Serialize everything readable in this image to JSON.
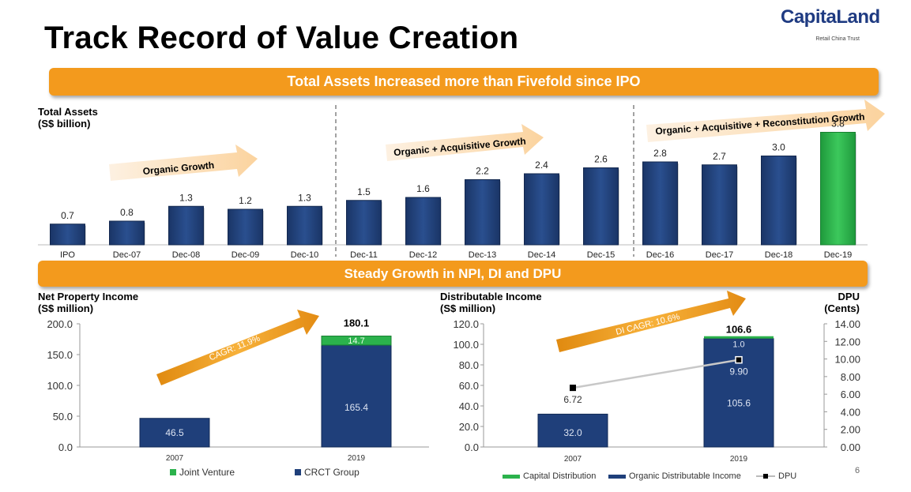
{
  "title": "Track Record of Value Creation",
  "logo": {
    "main": "CapitaLand",
    "sub": "Retail China Trust"
  },
  "banners": {
    "top": "Total Assets Increased more than Fivefold since IPO",
    "middle": "Steady Growth in NPI, DI and DPU"
  },
  "page_number": "6",
  "colors": {
    "navy": "#1f3f7a",
    "green": "#2bb24c",
    "orange": "#f39a1d",
    "arrow_light": "#fce4c4"
  },
  "chart_data": [
    {
      "type": "bar",
      "title": "Total Assets (S$ billion)",
      "ylabel_lines": [
        "Total Assets",
        "(S$ billion)"
      ],
      "categories": [
        "IPO",
        "Dec-07",
        "Dec-08",
        "Dec-09",
        "Dec-10",
        "Dec-11",
        "Dec-12",
        "Dec-13",
        "Dec-14",
        "Dec-15",
        "Dec-16",
        "Dec-17",
        "Dec-18",
        "Dec-19"
      ],
      "values": [
        0.7,
        0.8,
        1.3,
        1.2,
        1.3,
        1.5,
        1.6,
        2.2,
        2.4,
        2.6,
        2.8,
        2.7,
        3.0,
        3.8
      ],
      "labels": [
        "0.7",
        "0.8",
        "1.3",
        "1.2",
        "1.3",
        "1.5",
        "1.6",
        "2.2",
        "2.4",
        "2.6",
        "2.8",
        "2.7",
        "3.0",
        "3.8"
      ],
      "highlight_index": 13,
      "ylim": [
        0,
        4.0
      ],
      "annotations": [
        "Organic Growth",
        "Organic + Acquisitive Growth",
        "Organic + Acquisitive + Reconstitution Growth"
      ]
    },
    {
      "type": "bar",
      "stacked": true,
      "title": "Net Property Income (S$ million)",
      "ylabel_lines": [
        "Net Property Income",
        "(S$ million)"
      ],
      "categories": [
        "2007",
        "2019"
      ],
      "series": [
        {
          "name": "CRCT Group",
          "values": [
            46.5,
            165.4
          ]
        },
        {
          "name": "Joint Venture",
          "values": [
            0,
            14.7
          ]
        }
      ],
      "totals": [
        null,
        "180.1"
      ],
      "segment_labels": {
        "CRCT Group": [
          "46.5",
          "165.4"
        ],
        "Joint Venture": [
          null,
          "14.7"
        ]
      },
      "yticks": [
        "0.0",
        "50.0",
        "100.0",
        "150.0",
        "200.0"
      ],
      "ylim": [
        0,
        200
      ],
      "annotation": "CAGR: 11.9%"
    },
    {
      "type": "bar",
      "stacked": true,
      "title": "Distributable Income (S$ million)",
      "ylabel_lines": [
        "Distributable Income",
        "(S$ million)"
      ],
      "y2label_lines": [
        "DPU",
        "(Cents)"
      ],
      "categories": [
        "2007",
        "2019"
      ],
      "series": [
        {
          "name": "Organic Distributable Income",
          "values": [
            32.0,
            105.6
          ]
        },
        {
          "name": "Capital Distribution",
          "values": [
            0,
            1.0
          ]
        },
        {
          "name": "DPU",
          "type": "line",
          "axis": "right",
          "values": [
            6.72,
            9.9
          ]
        }
      ],
      "totals": [
        null,
        "106.6"
      ],
      "segment_labels": {
        "Organic Distributable Income": [
          "32.0",
          "105.6"
        ],
        "Capital Distribution": [
          null,
          "1.0"
        ],
        "DPU": [
          "6.72",
          "9.90"
        ]
      },
      "yticks": [
        "0.0",
        "20.0",
        "40.0",
        "60.0",
        "80.0",
        "100.0",
        "120.0"
      ],
      "y2ticks": [
        "0.00",
        "2.00",
        "4.00",
        "6.00",
        "8.00",
        "10.00",
        "12.00",
        "14.00"
      ],
      "ylim": [
        0,
        120
      ],
      "y2lim": [
        0,
        14
      ],
      "annotation": "DI CAGR: 10.6%"
    }
  ]
}
